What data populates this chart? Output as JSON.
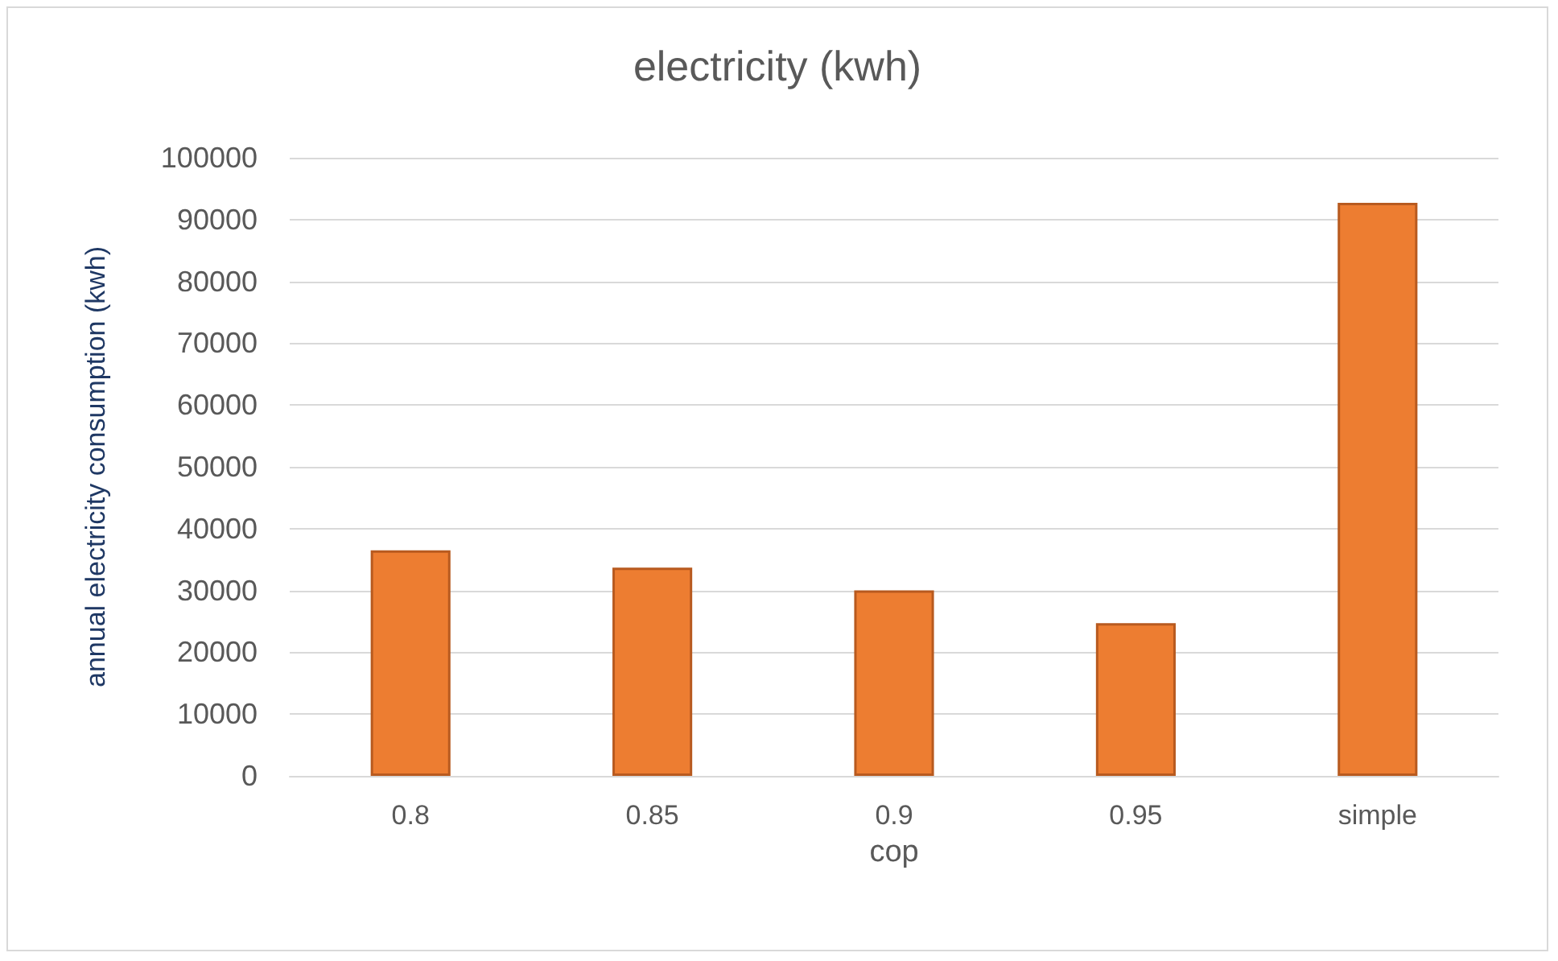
{
  "chart_data": {
    "type": "bar",
    "title": "electricity (kwh)",
    "xlabel": "cop",
    "ylabel": "annual electricity consumption (kwh)",
    "categories": [
      "0.8",
      "0.85",
      "0.9",
      "0.95",
      "simple"
    ],
    "values": [
      36500,
      33700,
      30000,
      24700,
      92700
    ],
    "color": "#ed7d31",
    "ylim": [
      0,
      100000
    ],
    "yticks": [
      0,
      10000,
      20000,
      30000,
      40000,
      50000,
      60000,
      70000,
      80000,
      90000,
      100000
    ],
    "grid": "y"
  }
}
